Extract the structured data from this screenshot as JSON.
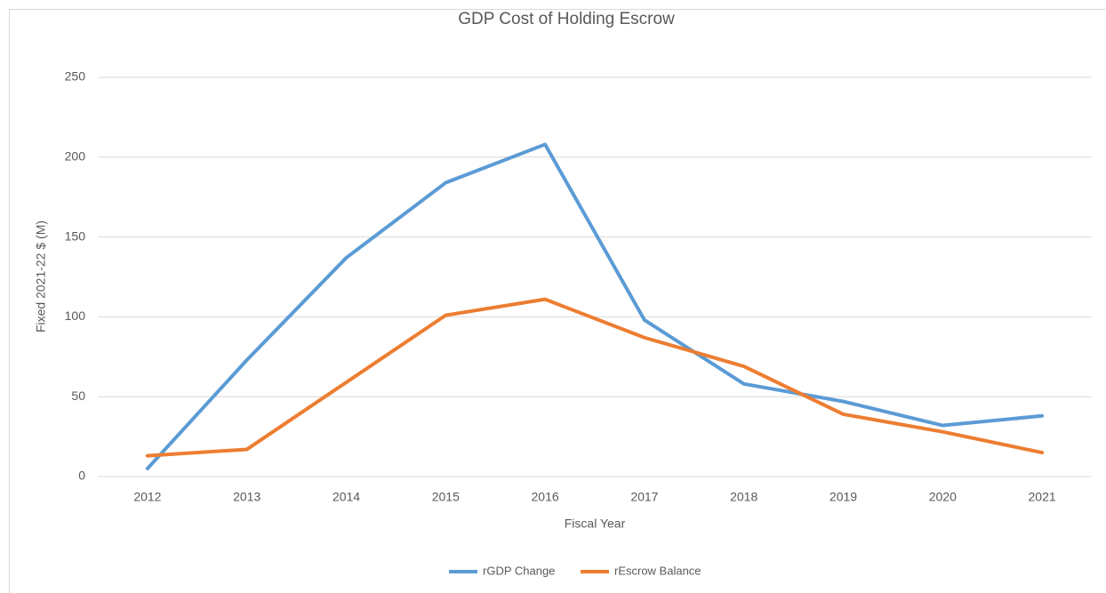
{
  "chart_data": {
    "type": "line",
    "title": "GDP Cost of Holding Escrow",
    "x_label": "Fiscal Year",
    "y_label": "Fixed 2021-22 $ (M)",
    "categories": [
      "2012",
      "2013",
      "2014",
      "2015",
      "2016",
      "2017",
      "2018",
      "2019",
      "2020",
      "2021"
    ],
    "series": [
      {
        "name": "rGDP Change",
        "color": "#5b9bd5",
        "values": [
          5,
          73,
          137,
          184,
          208,
          98,
          58,
          47,
          32,
          38
        ]
      },
      {
        "name": "rEscrow Balance",
        "color": "#ed7d31",
        "values": [
          13,
          17,
          59,
          101,
          111,
          87,
          69,
          39,
          28,
          15
        ]
      }
    ],
    "ylim": [
      0,
      250
    ],
    "yticks": [
      0,
      50,
      100,
      150,
      200,
      250
    ],
    "grid": true,
    "legend": "bottom"
  }
}
